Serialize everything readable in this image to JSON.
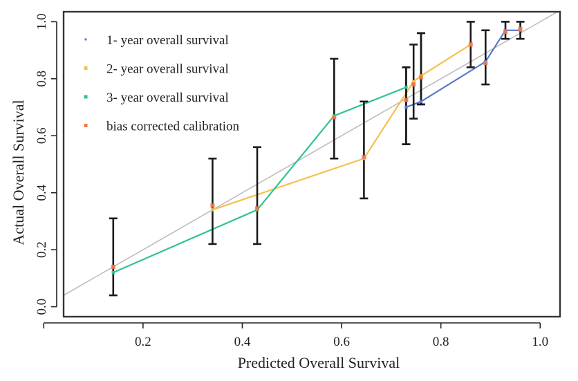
{
  "chart_data": {
    "type": "line",
    "xlabel": "Predicted Overall Survival",
    "ylabel": "Actual Overall Survival",
    "xlim": [
      0.04,
      1.04
    ],
    "ylim": [
      -0.035,
      1.035
    ],
    "x_ticks": [
      0.2,
      0.4,
      0.6,
      0.8,
      1.0
    ],
    "x_tick_labels": [
      "0.2",
      "0.4",
      "0.6",
      "0.8",
      "1.0"
    ],
    "y_ticks": [
      0.0,
      0.2,
      0.4,
      0.6,
      0.8,
      1.0
    ],
    "y_tick_labels": [
      "0.0",
      "0.2",
      "0.4",
      "0.6",
      "0.8",
      "1.0"
    ],
    "grid": false,
    "legend_position": "top-left",
    "reference_line": {
      "color": "#bdbdbd",
      "from": [
        0.0,
        0.0
      ],
      "to": [
        1.04,
        1.04
      ]
    },
    "series": [
      {
        "name": "1- year overall survival",
        "color": "#5a78c8",
        "points": [
          {
            "x": 0.73,
            "y": 0.7,
            "err": [
              0.57,
              0.84
            ]
          },
          {
            "x": 0.76,
            "y": 0.72,
            "err": [
              0.71,
              0.96
            ]
          },
          {
            "x": 0.89,
            "y": 0.86,
            "err": [
              0.78,
              0.97
            ]
          },
          {
            "x": 0.93,
            "y": 0.97,
            "err": [
              0.94,
              1.0
            ]
          },
          {
            "x": 0.96,
            "y": 0.97,
            "err": [
              0.94,
              1.0
            ]
          }
        ]
      },
      {
        "name": "2- year overall survival",
        "color": "#f5c04a",
        "points": [
          {
            "x": 0.34,
            "y": 0.34,
            "err": [
              0.22,
              0.52
            ]
          },
          {
            "x": 0.645,
            "y": 0.52,
            "err": [
              0.38,
              0.72
            ]
          },
          {
            "x": 0.745,
            "y": 0.79,
            "err": [
              0.66,
              0.92
            ]
          },
          {
            "x": 0.76,
            "y": 0.81,
            "err": [
              0.71,
              0.96
            ]
          },
          {
            "x": 0.86,
            "y": 0.92,
            "err": [
              0.84,
              1.0
            ]
          }
        ]
      },
      {
        "name": "3- year overall survival",
        "color": "#2ec48c",
        "points": [
          {
            "x": 0.14,
            "y": 0.12,
            "err": [
              0.04,
              0.31
            ]
          },
          {
            "x": 0.43,
            "y": 0.34,
            "err": [
              0.22,
              0.56
            ]
          },
          {
            "x": 0.585,
            "y": 0.67,
            "err": [
              0.52,
              0.87
            ]
          },
          {
            "x": 0.73,
            "y": 0.77,
            "err": [
              0.57,
              0.84
            ]
          }
        ]
      },
      {
        "name": "bias corrected calibration",
        "color": "#f07a4a",
        "points": [
          {
            "x": 0.14,
            "y": 0.14
          },
          {
            "x": 0.34,
            "y": 0.355
          },
          {
            "x": 0.43,
            "y": 0.345
          },
          {
            "x": 0.585,
            "y": 0.665
          },
          {
            "x": 0.645,
            "y": 0.525
          },
          {
            "x": 0.73,
            "y": 0.725
          },
          {
            "x": 0.745,
            "y": 0.78
          },
          {
            "x": 0.76,
            "y": 0.805
          },
          {
            "x": 0.86,
            "y": 0.92
          },
          {
            "x": 0.89,
            "y": 0.855
          },
          {
            "x": 0.93,
            "y": 0.965
          },
          {
            "x": 0.96,
            "y": 0.975
          }
        ]
      }
    ]
  }
}
